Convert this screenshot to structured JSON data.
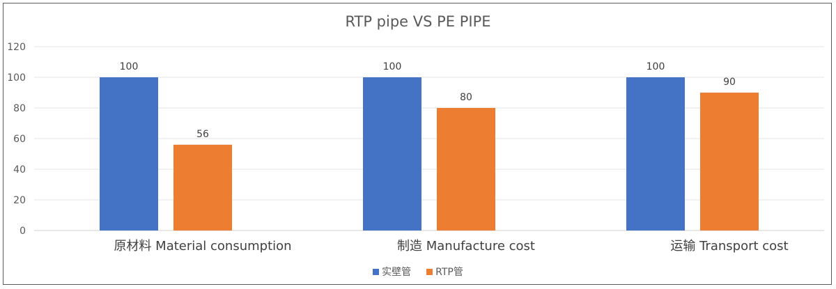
{
  "chart_data": {
    "type": "bar",
    "title": "RTP pipe VS PE PIPE",
    "categories": [
      "原材料  Material consumption",
      "制造  Manufacture cost",
      "运输  Transport cost"
    ],
    "series": [
      {
        "name": "实壁管",
        "values": [
          100,
          100,
          100
        ],
        "color": "#4472C4"
      },
      {
        "name": "RTP管",
        "values": [
          56,
          80,
          90
        ],
        "color": "#ED7D31"
      }
    ],
    "ylim": [
      0,
      120
    ],
    "yticks": [
      0,
      20,
      40,
      60,
      80,
      100,
      120
    ],
    "grid": true,
    "legend_position": "bottom"
  }
}
